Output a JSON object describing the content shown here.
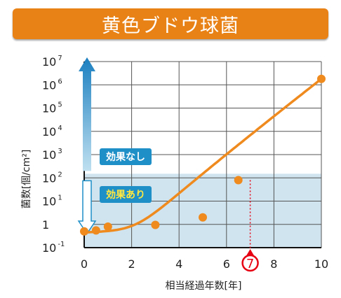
{
  "title": "黄色ブドウ球菌",
  "colors": {
    "banner": "#e98216",
    "curve": "#ef8a1e",
    "marker": "#ef8a1e",
    "effective_zone": "#cfe4ee",
    "grid": "#555555",
    "badge": "#1f8fc8",
    "badge_text_yellow": "#ffe840",
    "highlight": "#e60012"
  },
  "chart_data": {
    "type": "scatter",
    "title": "黄色ブドウ球菌",
    "xlabel": "相当経過年数[年]",
    "ylabel": "菌数[個/cm²]",
    "xlim": [
      0,
      10
    ],
    "ylim_log10": [
      -1,
      7
    ],
    "x_ticks": [
      "0",
      "2",
      "4",
      "6",
      "8",
      "10"
    ],
    "y_ticks": [
      {
        "base": "10",
        "exp": "7"
      },
      {
        "base": "10",
        "exp": "6"
      },
      {
        "base": "10",
        "exp": "5"
      },
      {
        "base": "10",
        "exp": "4"
      },
      {
        "base": "10",
        "exp": "3"
      },
      {
        "base": "10",
        "exp": "2"
      },
      {
        "base": "10",
        "exp": "1"
      },
      {
        "base": "1",
        "exp": ""
      },
      {
        "base": "10",
        "exp": "-1"
      }
    ],
    "grid": true,
    "y_scale": "log",
    "points": [
      {
        "x": 0,
        "y": 0.5
      },
      {
        "x": 0.5,
        "y": 0.55
      },
      {
        "x": 1,
        "y": 0.8
      },
      {
        "x": 3,
        "y": 0.95
      },
      {
        "x": 5,
        "y": 2.0
      },
      {
        "x": 6.5,
        "y": 80
      },
      {
        "x": 10,
        "y": 1800000
      }
    ],
    "effective_threshold_y": 150,
    "highlight_x": 7,
    "highlight_label": "7",
    "badge_not_effective": "効果なし",
    "badge_effective": "効果あり"
  }
}
